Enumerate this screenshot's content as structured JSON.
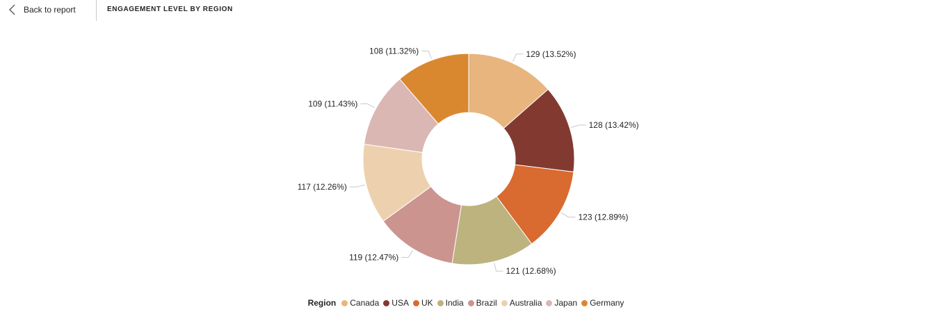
{
  "header": {
    "back_label": "Back to report",
    "title": "ENGAGEMENT LEVEL BY REGION"
  },
  "chart_data": {
    "type": "donut",
    "title": "ENGAGEMENT LEVEL BY REGION",
    "legend_title": "Region",
    "legend_position": "bottom-center",
    "categories": [
      "Canada",
      "USA",
      "UK",
      "India",
      "Brazil",
      "Australia",
      "Japan",
      "Germany"
    ],
    "values": [
      129,
      128,
      123,
      121,
      119,
      117,
      109,
      108
    ],
    "percent_labels": [
      "13.52%",
      "13.42%",
      "12.89%",
      "12.68%",
      "12.47%",
      "12.26%",
      "11.43%",
      "11.32%"
    ],
    "data_labels": [
      "129 (13.52%)",
      "128 (13.42%)",
      "123 (12.89%)",
      "121 (12.68%)",
      "119 (12.47%)",
      "117 (12.26%)",
      "109 (11.43%)",
      "108 (11.32%)"
    ],
    "colors": [
      "#E8B57F",
      "#823A30",
      "#D96A30",
      "#BDB37F",
      "#CC948F",
      "#EDD1AE",
      "#DAB7B3",
      "#DA8830"
    ]
  }
}
